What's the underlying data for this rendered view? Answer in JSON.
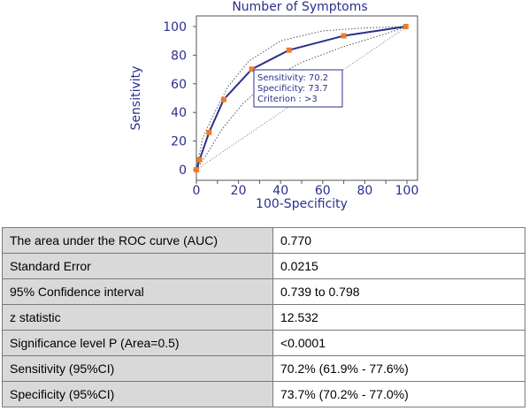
{
  "chart_data": {
    "type": "line",
    "title": "Number of Symptoms",
    "xlabel": "100-Specificity",
    "ylabel": "Sensitivity",
    "xlim": [
      0,
      100
    ],
    "ylim": [
      0,
      100
    ],
    "x_ticks": [
      "0",
      "10",
      "20",
      "30",
      "40",
      "50",
      "60",
      "70",
      "80",
      "90",
      "100"
    ],
    "y_ticks": [
      "0",
      "20",
      "40",
      "60",
      "80",
      "100"
    ],
    "series": [
      {
        "values": [
          {
            "x": 0,
            "y": 0
          },
          {
            "x": 1.5,
            "y": 7
          },
          {
            "x": 6,
            "y": 26
          },
          {
            "x": 13,
            "y": 49
          },
          {
            "x": 26.3,
            "y": 70.2
          },
          {
            "x": 44,
            "y": 83.5
          },
          {
            "x": 70,
            "y": 93.5
          },
          {
            "x": 99.5,
            "y": 100
          }
        ],
        "line_color": "#2b2f8e",
        "marker_color": "#f07c2a"
      }
    ],
    "ci_upper": [
      {
        "x": 0,
        "y": 0
      },
      {
        "x": 3,
        "y": 22
      },
      {
        "x": 8,
        "y": 38
      },
      {
        "x": 15,
        "y": 58
      },
      {
        "x": 25,
        "y": 76
      },
      {
        "x": 40,
        "y": 90
      },
      {
        "x": 60,
        "y": 97
      },
      {
        "x": 80,
        "y": 99
      },
      {
        "x": 100,
        "y": 100
      }
    ],
    "ci_lower": [
      {
        "x": 0,
        "y": 0
      },
      {
        "x": 5,
        "y": 11
      },
      {
        "x": 12,
        "y": 28
      },
      {
        "x": 22,
        "y": 46
      },
      {
        "x": 35,
        "y": 63
      },
      {
        "x": 50,
        "y": 75
      },
      {
        "x": 70,
        "y": 86
      },
      {
        "x": 90,
        "y": 95
      },
      {
        "x": 100,
        "y": 100
      }
    ],
    "ci_line_color": "#555555",
    "annotation": [
      "Sensitivity: 70.2",
      "Specificity: 73.7",
      "Criterion : >3"
    ],
    "grid": false
  },
  "stats_table": {
    "rows": [
      {
        "label": "The area under the ROC curve (AUC)",
        "value": "0.770"
      },
      {
        "label": "Standard Error",
        "value": "0.0215"
      },
      {
        "label": "95% Confidence interval",
        "value": "0.739 to 0.798"
      },
      {
        "label": "z statistic",
        "value": "12.532"
      },
      {
        "label": "Significance level P (Area=0.5)",
        "value": "<0.0001"
      },
      {
        "label": "Sensitivity (95%CI)",
        "value": "70.2% (61.9% - 77.6%)"
      },
      {
        "label": "Specificity (95%CI)",
        "value": "73.7% (70.2% - 77.0%)"
      }
    ]
  }
}
